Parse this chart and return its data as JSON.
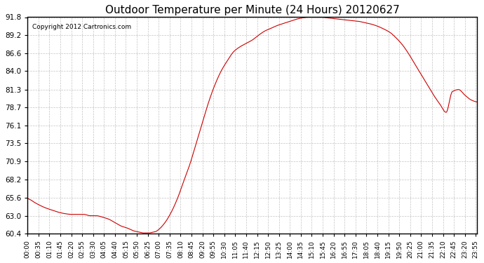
{
  "title": "Outdoor Temperature per Minute (24 Hours) 20120627",
  "copyright_text": "Copyright 2012 Cartronics.com",
  "line_color": "#cc0000",
  "background_color": "#ffffff",
  "plot_bg_color": "#ffffff",
  "grid_color": "#aaaaaa",
  "yticks": [
    60.4,
    63.0,
    65.6,
    68.2,
    70.9,
    73.5,
    76.1,
    78.7,
    81.3,
    84.0,
    86.6,
    89.2,
    91.8
  ],
  "ymin": 60.4,
  "ymax": 91.8,
  "total_minutes": 1440,
  "xtick_interval": 35,
  "xtick_labels": [
    "00:00",
    "00:35",
    "01:10",
    "01:45",
    "02:20",
    "02:55",
    "03:30",
    "04:05",
    "04:40",
    "05:15",
    "05:50",
    "06:25",
    "07:00",
    "07:35",
    "08:10",
    "08:45",
    "09:20",
    "09:55",
    "10:30",
    "11:05",
    "11:40",
    "12:15",
    "12:50",
    "13:25",
    "14:00",
    "14:35",
    "15:10",
    "15:45",
    "16:20",
    "16:55",
    "17:30",
    "18:05",
    "18:40",
    "19:15",
    "19:50",
    "20:25",
    "21:00",
    "21:35",
    "22:10",
    "22:45",
    "23:20",
    "23:55"
  ],
  "curve_keypoints_x": [
    0,
    10,
    20,
    40,
    60,
    80,
    100,
    120,
    140,
    160,
    180,
    200,
    220,
    240,
    260,
    280,
    300,
    320,
    330,
    340,
    350,
    360,
    370,
    380,
    390,
    400,
    410,
    420,
    440,
    460,
    480,
    500,
    520,
    540,
    560,
    580,
    600,
    620,
    640,
    660,
    680,
    700,
    720,
    740,
    760,
    780,
    800,
    820,
    840,
    860,
    880,
    900,
    920,
    940,
    960,
    980,
    1000,
    1020,
    1040,
    1060,
    1080,
    1100,
    1120,
    1140,
    1160,
    1180,
    1200,
    1220,
    1240,
    1260,
    1280,
    1300,
    1320,
    1340,
    1360,
    1380,
    1400,
    1420,
    1439
  ],
  "curve_keypoints_y": [
    65.5,
    65.3,
    65.0,
    64.5,
    64.1,
    63.8,
    63.5,
    63.3,
    63.2,
    63.2,
    63.2,
    63.0,
    63.0,
    62.8,
    62.5,
    62.0,
    61.5,
    61.2,
    61.0,
    60.8,
    60.7,
    60.6,
    60.5,
    60.5,
    60.5,
    60.6,
    60.7,
    61.0,
    62.0,
    63.5,
    65.5,
    68.0,
    70.5,
    73.5,
    76.5,
    79.5,
    82.0,
    84.0,
    85.5,
    86.8,
    87.5,
    88.0,
    88.5,
    89.2,
    89.8,
    90.2,
    90.6,
    90.9,
    91.2,
    91.5,
    91.7,
    91.8,
    91.8,
    91.8,
    91.7,
    91.6,
    91.5,
    91.4,
    91.3,
    91.2,
    91.0,
    90.8,
    90.5,
    90.1,
    89.6,
    88.8,
    87.8,
    86.5,
    85.0,
    83.5,
    82.0,
    80.5,
    79.2,
    78.0,
    81.0,
    81.3,
    80.5,
    79.8,
    79.5
  ]
}
